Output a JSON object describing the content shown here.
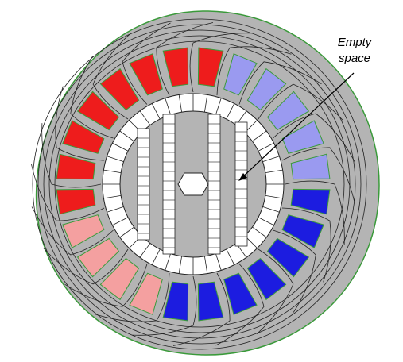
{
  "annotation": {
    "lines": [
      "Empty",
      "space"
    ]
  }
}
